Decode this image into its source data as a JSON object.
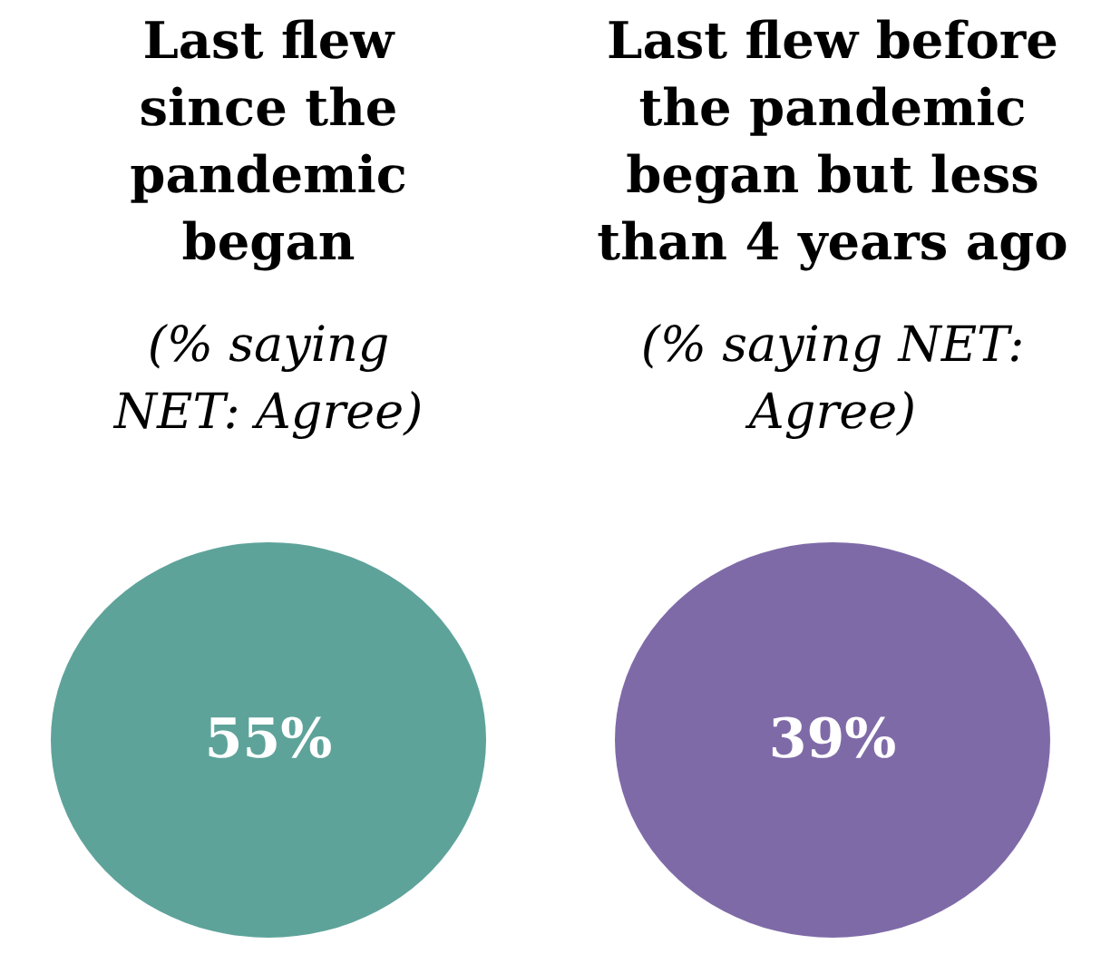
{
  "chart_data": [
    {
      "type": "other",
      "title": "Last flew\nsince the\npandemic\nbegan",
      "subtitle": "(% saying\nNET: Agree)",
      "values": [
        55
      ],
      "value_labels": [
        "55%"
      ],
      "color": "#5ea39a"
    },
    {
      "type": "other",
      "title": "Last flew before\nthe pandemic\nbegan but less\nthan 4 years ago",
      "subtitle": "(% saying NET:\nAgree)",
      "values": [
        39
      ],
      "value_labels": [
        "39%"
      ],
      "color": "#7f6aa8"
    }
  ]
}
